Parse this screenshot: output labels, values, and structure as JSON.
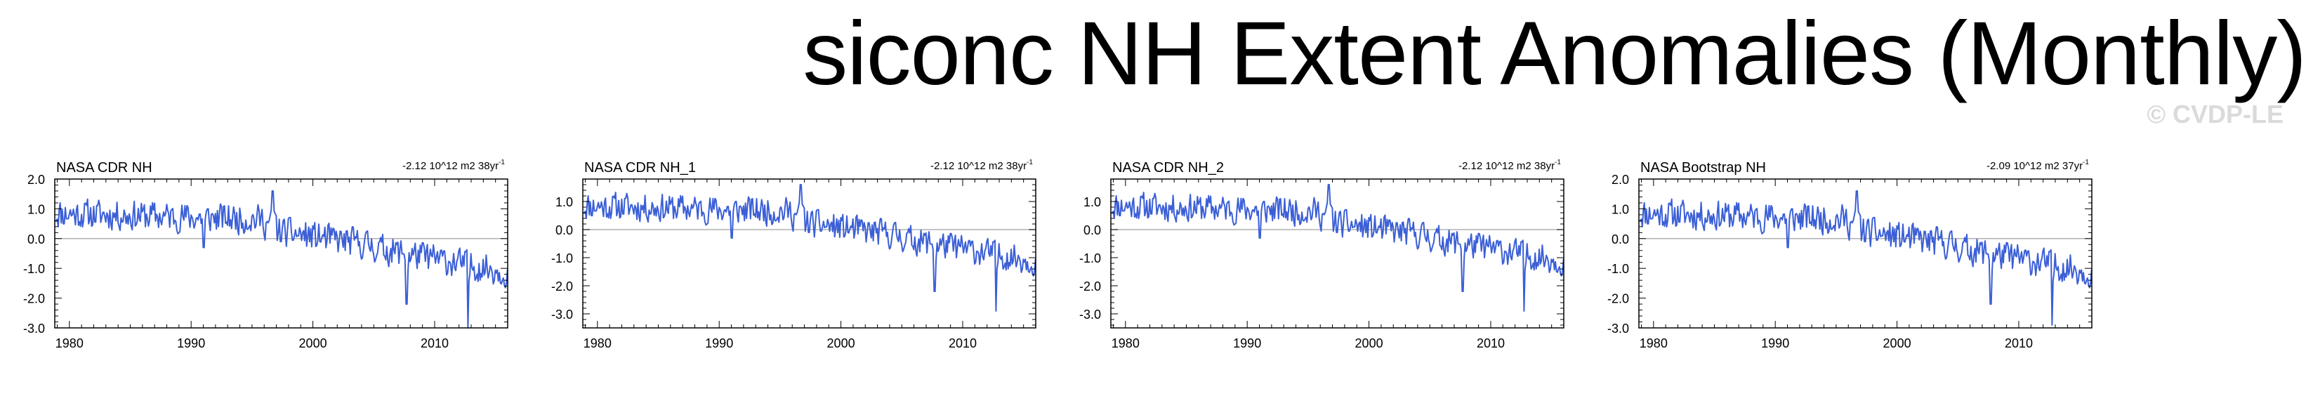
{
  "page": {
    "title": "siconc NH Extent Anomalies (Monthly)",
    "watermark": "© CVDP-LE"
  },
  "colors": {
    "line": "#3b5fd6",
    "zero_line": "#b0b0b0",
    "axes": "#000000"
  },
  "chart_data": [
    {
      "type": "line",
      "title": "NASA CDR NH",
      "trend_label": "-2.12 10^12 m2 38yr",
      "trend_superscript": "-1",
      "xlim": [
        1978.8,
        2016.0
      ],
      "ylim": [
        -3.0,
        2.0
      ],
      "ymajor": [
        2.0,
        1.0,
        0.0,
        -1.0,
        -2.0,
        -3.0
      ],
      "ytick_labels": [
        "2.0",
        "1.0",
        "0.0",
        "-1.0",
        "-2.0",
        "-3.0"
      ],
      "xtick_labels": [
        "1980",
        "1990",
        "2000",
        "2010"
      ],
      "xmajor": [
        1980,
        1990,
        2000,
        2010
      ],
      "zero_line": 0.0,
      "series": [
        {
          "name": "NASA CDR NH",
          "x_start": 1978.83,
          "step": 0.0833,
          "seed": 11,
          "drops": [
            [
              2007.7,
              -2.2
            ],
            [
              2012.7,
              -3.0
            ],
            [
              2015.9,
              -1.5
            ]
          ]
        }
      ]
    },
    {
      "type": "line",
      "title": "NASA CDR NH_1",
      "trend_label": "-2.12 10^12 m2 38yr",
      "trend_superscript": "-1",
      "xlim": [
        1978.8,
        2016.0
      ],
      "ylim": [
        -3.5,
        1.8
      ],
      "ymajor": [
        1.0,
        0.0,
        -1.0,
        -2.0,
        -3.0
      ],
      "ytick_labels": [
        "1.0",
        "0.0",
        "-1.0",
        "-2.0",
        "-3.0"
      ],
      "xtick_labels": [
        "1980",
        "1990",
        "2000",
        "2010"
      ],
      "xmajor": [
        1980,
        1990,
        2000,
        2010
      ],
      "zero_line": 0.0,
      "series": [
        {
          "name": "NASA CDR NH_1",
          "x_start": 1978.83,
          "step": 0.0833,
          "seed": 11,
          "drops": [
            [
              2007.7,
              -2.2
            ],
            [
              2012.7,
              -2.9
            ],
            [
              2015.9,
              -1.5
            ]
          ]
        }
      ]
    },
    {
      "type": "line",
      "title": "NASA CDR NH_2",
      "trend_label": "-2.12 10^12 m2 38yr",
      "trend_superscript": "-1",
      "xlim": [
        1978.8,
        2016.0
      ],
      "ylim": [
        -3.5,
        1.8
      ],
      "ymajor": [
        1.0,
        0.0,
        -1.0,
        -2.0,
        -3.0
      ],
      "ytick_labels": [
        "1.0",
        "0.0",
        "-1.0",
        "-2.0",
        "-3.0"
      ],
      "xtick_labels": [
        "1980",
        "1990",
        "2000",
        "2010"
      ],
      "xmajor": [
        1980,
        1990,
        2000,
        2010
      ],
      "zero_line": 0.0,
      "series": [
        {
          "name": "NASA CDR NH_2",
          "x_start": 1978.83,
          "step": 0.0833,
          "seed": 11,
          "drops": [
            [
              2007.7,
              -2.2
            ],
            [
              2012.7,
              -2.9
            ],
            [
              2015.9,
              -1.5
            ]
          ]
        }
      ]
    },
    {
      "type": "line",
      "title": "NASA Bootstrap NH",
      "trend_label": "-2.09 10^12 m2 37yr",
      "trend_superscript": "-1",
      "xlim": [
        1978.8,
        2016.0
      ],
      "ylim": [
        -3.0,
        2.0
      ],
      "ymajor": [
        2.0,
        1.0,
        0.0,
        -1.0,
        -2.0,
        -3.0
      ],
      "ytick_labels": [
        "2.0",
        "1.0",
        "0.0",
        "-1.0",
        "-2.0",
        "-3.0"
      ],
      "xtick_labels": [
        "1980",
        "1990",
        "2000",
        "2010"
      ],
      "xmajor": [
        1980,
        1990,
        2000,
        2010
      ],
      "zero_line": 0.0,
      "series": [
        {
          "name": "NASA Bootstrap NH",
          "x_start": 1978.83,
          "step": 0.0833,
          "seed": 11,
          "drops": [
            [
              2007.7,
              -2.2
            ],
            [
              2012.7,
              -2.9
            ],
            [
              2015.9,
              -1.5
            ]
          ]
        }
      ]
    }
  ]
}
